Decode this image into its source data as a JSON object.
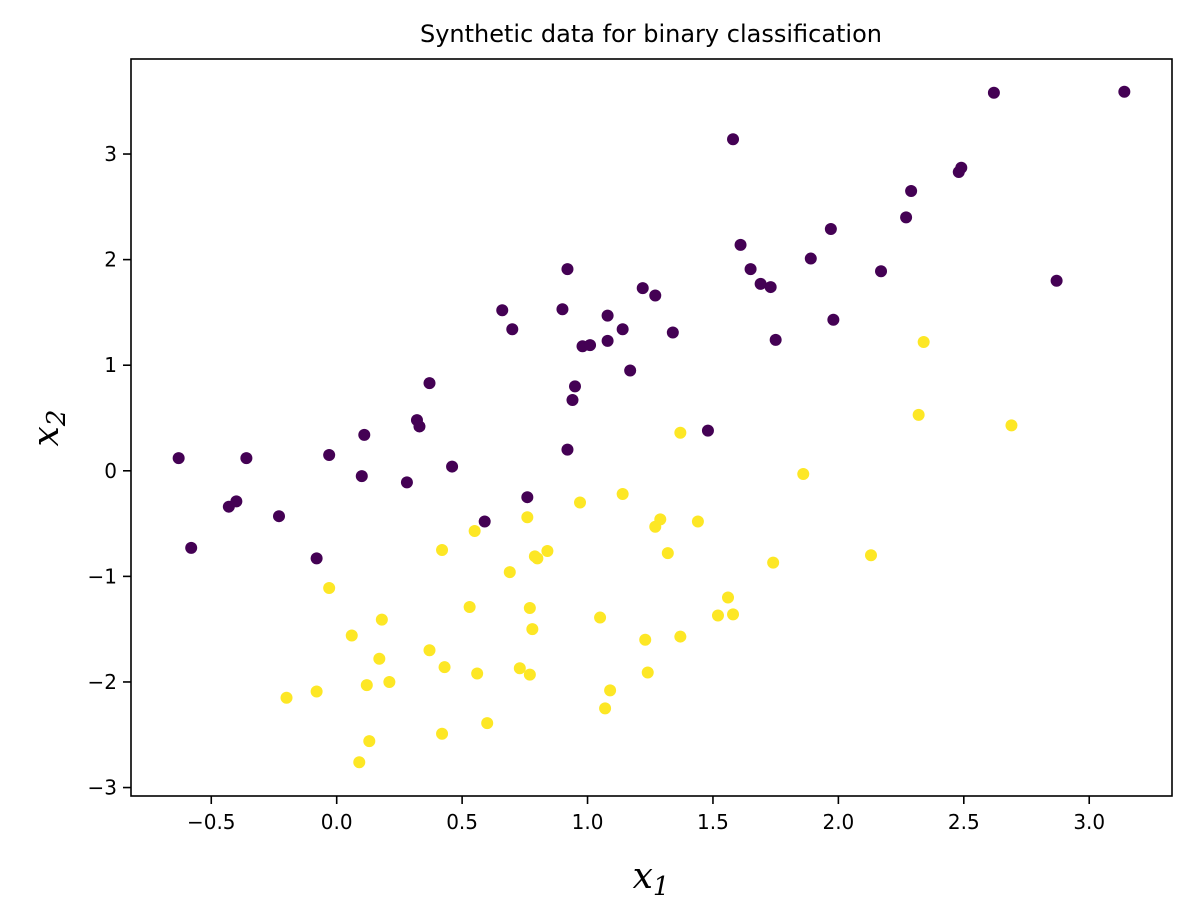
{
  "chart_data": {
    "type": "scatter",
    "title": "Synthetic data for binary classification",
    "xlabel": {
      "base": "x",
      "sub": "1"
    },
    "ylabel": {
      "base": "x",
      "sub": "2"
    },
    "xlim": [
      -0.82,
      3.33
    ],
    "ylim": [
      -3.08,
      3.9
    ],
    "xticks": [
      -0.5,
      0.0,
      0.5,
      1.0,
      1.5,
      2.0,
      2.5,
      3.0
    ],
    "xtick_labels": [
      "−0.5",
      "0.0",
      "0.5",
      "1.0",
      "1.5",
      "2.0",
      "2.5",
      "3.0"
    ],
    "yticks": [
      -3,
      -2,
      -1,
      0,
      1,
      2,
      3
    ],
    "ytick_labels": [
      "−3",
      "−2",
      "−1",
      "0",
      "1",
      "2",
      "3"
    ],
    "grid": false,
    "legend": false,
    "series": [
      {
        "color": "#440154",
        "points": [
          [
            -0.63,
            0.12
          ],
          [
            -0.58,
            -0.73
          ],
          [
            -0.43,
            -0.34
          ],
          [
            -0.4,
            -0.29
          ],
          [
            -0.36,
            0.12
          ],
          [
            -0.23,
            -0.43
          ],
          [
            -0.08,
            -0.83
          ],
          [
            -0.03,
            0.15
          ],
          [
            0.1,
            -0.05
          ],
          [
            0.11,
            0.34
          ],
          [
            0.28,
            -0.11
          ],
          [
            0.32,
            0.48
          ],
          [
            0.33,
            0.42
          ],
          [
            0.37,
            0.83
          ],
          [
            0.46,
            0.04
          ],
          [
            0.59,
            -0.48
          ],
          [
            0.66,
            1.52
          ],
          [
            0.7,
            1.34
          ],
          [
            0.76,
            -0.25
          ],
          [
            0.9,
            1.53
          ],
          [
            0.92,
            1.91
          ],
          [
            0.92,
            0.2
          ],
          [
            0.94,
            0.67
          ],
          [
            0.95,
            0.8
          ],
          [
            0.98,
            1.18
          ],
          [
            1.01,
            1.19
          ],
          [
            1.08,
            1.47
          ],
          [
            1.08,
            1.23
          ],
          [
            1.14,
            1.34
          ],
          [
            1.17,
            0.95
          ],
          [
            1.22,
            1.73
          ],
          [
            1.27,
            1.66
          ],
          [
            1.34,
            1.31
          ],
          [
            1.48,
            0.38
          ],
          [
            1.58,
            3.14
          ],
          [
            1.61,
            2.14
          ],
          [
            1.65,
            1.91
          ],
          [
            1.69,
            1.77
          ],
          [
            1.73,
            1.74
          ],
          [
            1.75,
            1.24
          ],
          [
            1.89,
            2.01
          ],
          [
            1.97,
            2.29
          ],
          [
            1.98,
            1.43
          ],
          [
            2.17,
            1.89
          ],
          [
            2.27,
            2.4
          ],
          [
            2.29,
            2.65
          ],
          [
            2.48,
            2.83
          ],
          [
            2.49,
            2.87
          ],
          [
            2.62,
            3.58
          ],
          [
            2.87,
            1.8
          ],
          [
            3.14,
            3.59
          ]
        ]
      },
      {
        "color": "#fde725",
        "points": [
          [
            -0.2,
            -2.15
          ],
          [
            -0.08,
            -2.09
          ],
          [
            -0.03,
            -1.11
          ],
          [
            0.06,
            -1.56
          ],
          [
            0.09,
            -2.76
          ],
          [
            0.12,
            -2.03
          ],
          [
            0.13,
            -2.56
          ],
          [
            0.17,
            -1.78
          ],
          [
            0.18,
            -1.41
          ],
          [
            0.21,
            -2.0
          ],
          [
            0.37,
            -1.7
          ],
          [
            0.42,
            -0.75
          ],
          [
            0.42,
            -2.49
          ],
          [
            0.43,
            -1.86
          ],
          [
            0.53,
            -1.29
          ],
          [
            0.55,
            -0.57
          ],
          [
            0.56,
            -1.92
          ],
          [
            0.6,
            -2.39
          ],
          [
            0.69,
            -0.96
          ],
          [
            0.73,
            -1.87
          ],
          [
            0.76,
            -0.44
          ],
          [
            0.77,
            -1.3
          ],
          [
            0.77,
            -1.93
          ],
          [
            0.78,
            -1.5
          ],
          [
            0.79,
            -0.81
          ],
          [
            0.8,
            -0.83
          ],
          [
            0.84,
            -0.76
          ],
          [
            0.97,
            -0.3
          ],
          [
            1.05,
            -1.39
          ],
          [
            1.07,
            -2.25
          ],
          [
            1.09,
            -2.08
          ],
          [
            1.14,
            -0.22
          ],
          [
            1.23,
            -1.6
          ],
          [
            1.24,
            -1.91
          ],
          [
            1.27,
            -0.53
          ],
          [
            1.29,
            -0.46
          ],
          [
            1.32,
            -0.78
          ],
          [
            1.37,
            -1.57
          ],
          [
            1.37,
            0.36
          ],
          [
            1.44,
            -0.48
          ],
          [
            1.52,
            -1.37
          ],
          [
            1.56,
            -1.2
          ],
          [
            1.58,
            -1.36
          ],
          [
            1.74,
            -0.87
          ],
          [
            1.86,
            -0.03
          ],
          [
            2.13,
            -0.8
          ],
          [
            2.32,
            0.53
          ],
          [
            2.34,
            1.22
          ],
          [
            2.69,
            0.43
          ]
        ]
      }
    ]
  }
}
